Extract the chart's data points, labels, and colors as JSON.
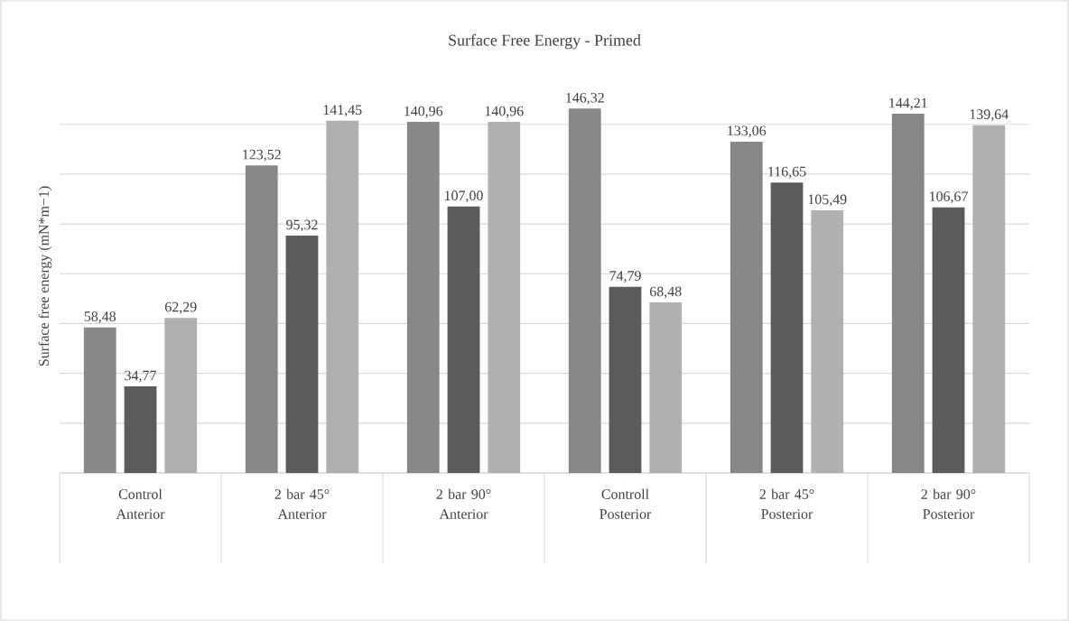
{
  "chart_data": {
    "type": "bar",
    "title": "Surface Free Energy - Primed",
    "ylabel": "Surface free energy (mN*m−1)",
    "categories": [
      "Control Anterior",
      "2 bar 45° Anterior",
      "2 bar 90° Anterior",
      "Controll Posterior",
      "2 bar 45° Posterior",
      "2 bar 90° Posterior"
    ],
    "series": [
      {
        "color": "#878787",
        "values": [
          58.48,
          123.52,
          140.96,
          146.32,
          133.06,
          144.21
        ],
        "value_labels": [
          "58,48",
          "123,52",
          "140,96",
          "146,32",
          "133,06",
          "144,21"
        ]
      },
      {
        "color": "#5b5b5b",
        "values": [
          34.77,
          95.32,
          107.0,
          74.79,
          116.65,
          106.67
        ],
        "value_labels": [
          "34,77",
          "95,32",
          "107,00",
          "74,79",
          "116,65",
          "106,67"
        ]
      },
      {
        "color": "#b0b0b0",
        "values": [
          62.29,
          141.45,
          140.96,
          68.48,
          105.49,
          139.64
        ],
        "value_labels": [
          "62,29",
          "141,45",
          "140,96",
          "68,48",
          "105,49",
          "139,64"
        ]
      }
    ],
    "grid": "y",
    "tick_labels": "x"
  }
}
